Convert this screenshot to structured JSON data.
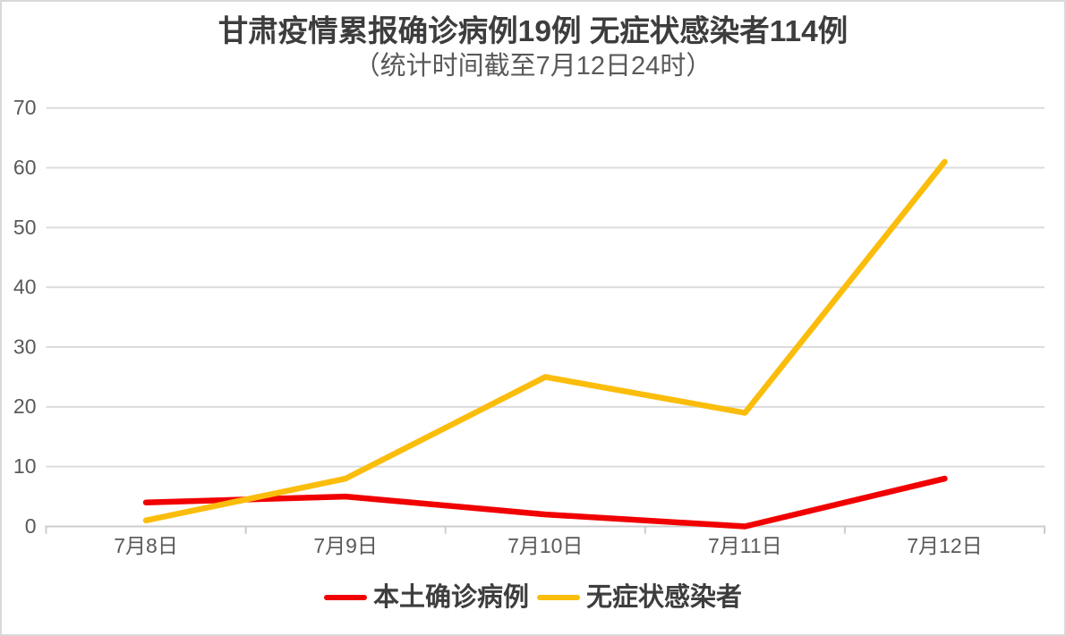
{
  "chart_data": {
    "type": "line",
    "title": "甘肃疫情累报确诊病例19例 无症状感染者114例",
    "subtitle": "（统计时间截至7月12日24时）",
    "categories": [
      "7月8日",
      "7月9日",
      "7月10日",
      "7月11日",
      "7月12日"
    ],
    "series": [
      {
        "name": "本土确诊病例",
        "color": "#f10000",
        "values": [
          4,
          5,
          2,
          0,
          8
        ]
      },
      {
        "name": "无症状感染者",
        "color": "#fbbd0b",
        "values": [
          1,
          8,
          25,
          19,
          61
        ]
      }
    ],
    "xlabel": "",
    "ylabel": "",
    "ylim": [
      0,
      70
    ],
    "y_ticks": [
      0,
      10,
      20,
      30,
      40,
      50,
      60,
      70
    ],
    "grid": true,
    "legend_position": "bottom"
  },
  "style": {
    "background": "#ffffff",
    "frame_border_color": "#d9d9d9",
    "grid_color": "#dcdcdc",
    "axis_color": "#cccccc",
    "title_color": "#3d3d3d",
    "subtitle_color": "#595959",
    "axis_label_color": "#595959",
    "legend_text_color": "#3d3d3d"
  }
}
